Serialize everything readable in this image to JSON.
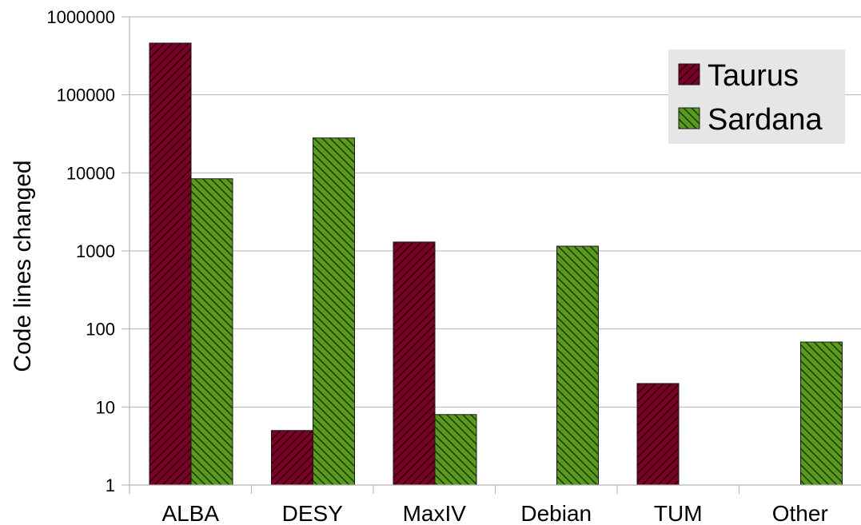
{
  "chart_data": {
    "type": "bar",
    "title": "",
    "xlabel": "",
    "ylabel": "Code lines changed",
    "yscale": "log",
    "ylim": [
      1,
      1000000
    ],
    "yticks": [
      1,
      10,
      100,
      1000,
      10000,
      100000,
      1000000
    ],
    "ytick_labels": [
      "1",
      "10",
      "100",
      "1000",
      "10000",
      "100000",
      "1000000"
    ],
    "grid": true,
    "legend_position": "top-right",
    "categories": [
      "ALBA",
      "DESY",
      "MaxIV",
      "Debian",
      "TUM",
      "Other"
    ],
    "series": [
      {
        "name": "Taurus",
        "color": "#7a0026",
        "hatch": "diagonal-forward",
        "values": [
          460000,
          5,
          1300,
          null,
          20,
          null
        ]
      },
      {
        "name": "Sardana",
        "color": "#5a9a1e",
        "hatch": "diagonal-backward",
        "values": [
          8400,
          28000,
          8,
          1150,
          null,
          68
        ]
      }
    ]
  }
}
